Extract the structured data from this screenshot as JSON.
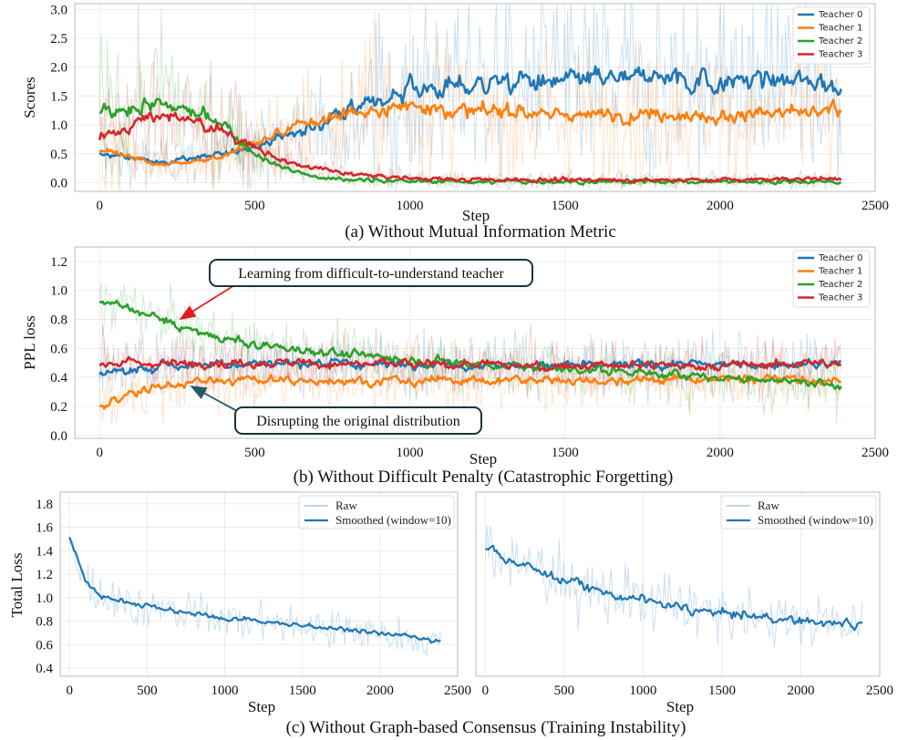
{
  "colors": {
    "teacher0": "#1f77b4",
    "teacher1": "#ff7f0e",
    "teacher2": "#2ca02c",
    "teacher3": "#d62728",
    "smooth": "#1f77b4",
    "raw": "#a9c9e6"
  },
  "chart_data": [
    {
      "id": "a",
      "type": "line",
      "caption": "(a) Without Mutual Information Metric",
      "xlabel": "Step",
      "ylabel": "Scores",
      "xlim": [
        -80,
        2500
      ],
      "ylim": [
        -0.15,
        3.1
      ],
      "xticks": [
        0,
        500,
        1000,
        1500,
        2000,
        2500
      ],
      "xtick_labels": [
        "0",
        "500",
        "1000",
        "1500",
        "2000",
        "2500"
      ],
      "yticks": [
        0.0,
        0.5,
        1.0,
        1.5,
        2.0,
        2.5,
        3.0
      ],
      "ytick_labels": [
        "0.0",
        "0.5",
        "1.0",
        "1.5",
        "2.0",
        "2.5",
        "3.0"
      ],
      "legend": "top-right",
      "series": [
        {
          "name": "Teacher 0",
          "x": [
            0,
            200,
            400,
            600,
            800,
            1000,
            1200,
            1400,
            1600,
            1800,
            2000,
            2200,
            2390
          ],
          "y": [
            0.5,
            0.35,
            0.5,
            0.8,
            1.2,
            1.6,
            1.7,
            1.75,
            1.8,
            1.8,
            1.75,
            1.8,
            1.65
          ]
        },
        {
          "name": "Teacher 1",
          "x": [
            0,
            200,
            400,
            600,
            800,
            1000,
            1200,
            1400,
            1600,
            1800,
            2000,
            2200,
            2390
          ],
          "y": [
            0.6,
            0.3,
            0.45,
            0.9,
            1.2,
            1.35,
            1.25,
            1.2,
            1.15,
            1.2,
            1.15,
            1.2,
            1.25
          ]
        },
        {
          "name": "Teacher 2",
          "x": [
            0,
            200,
            400,
            500,
            600,
            700,
            800,
            1000,
            1200,
            1600,
            2000,
            2390
          ],
          "y": [
            1.2,
            1.4,
            1.0,
            0.5,
            0.25,
            0.1,
            0.05,
            0.03,
            0.02,
            0.02,
            0.02,
            0.02
          ]
        },
        {
          "name": "Teacher 3",
          "x": [
            0,
            200,
            400,
            600,
            800,
            1000,
            1200,
            1600,
            2000,
            2390
          ],
          "y": [
            0.8,
            1.2,
            0.9,
            0.35,
            0.15,
            0.08,
            0.05,
            0.05,
            0.05,
            0.08
          ]
        }
      ]
    },
    {
      "id": "b",
      "type": "line",
      "caption": "(b) Without Difficult Penalty (Catastrophic Forgetting)",
      "xlabel": "Step",
      "ylabel": "PPL loss",
      "xlim": [
        -80,
        2500
      ],
      "ylim": [
        -0.02,
        1.3
      ],
      "xticks": [
        0,
        500,
        1000,
        1500,
        2000,
        2500
      ],
      "xtick_labels": [
        "0",
        "500",
        "1000",
        "1500",
        "2000",
        "2500"
      ],
      "yticks": [
        0.0,
        0.2,
        0.4,
        0.6,
        0.8,
        1.0,
        1.2
      ],
      "ytick_labels": [
        "0.0",
        "0.2",
        "0.4",
        "0.6",
        "0.8",
        "1.0",
        "1.2"
      ],
      "legend": "top-right",
      "series": [
        {
          "name": "Teacher 0",
          "x": [
            0,
            200,
            500,
            1000,
            1500,
            2000,
            2390
          ],
          "y": [
            0.42,
            0.48,
            0.5,
            0.49,
            0.48,
            0.49,
            0.5
          ]
        },
        {
          "name": "Teacher 1",
          "x": [
            0,
            100,
            200,
            300,
            500,
            1000,
            1500,
            2000,
            2390
          ],
          "y": [
            0.2,
            0.28,
            0.35,
            0.37,
            0.38,
            0.38,
            0.38,
            0.39,
            0.38
          ]
        },
        {
          "name": "Teacher 2",
          "x": [
            0,
            100,
            200,
            300,
            500,
            800,
            1000,
            1500,
            2000,
            2390
          ],
          "y": [
            0.92,
            0.88,
            0.8,
            0.72,
            0.62,
            0.56,
            0.52,
            0.46,
            0.4,
            0.35
          ]
        },
        {
          "name": "Teacher 3",
          "x": [
            0,
            200,
            500,
            1000,
            1500,
            2000,
            2390
          ],
          "y": [
            0.5,
            0.5,
            0.5,
            0.49,
            0.48,
            0.48,
            0.5
          ]
        }
      ],
      "annotations": [
        {
          "text": "Learning from difficult-to-understand teacher",
          "points_to": {
            "x": 230,
            "y": 0.82
          }
        },
        {
          "text": "Disrupting the original distribution",
          "points_to": {
            "x": 260,
            "y": 0.36
          }
        }
      ]
    },
    {
      "id": "c-left",
      "type": "line",
      "xlabel": "Step",
      "ylabel": "Total Loss",
      "xlim": [
        -60,
        2500
      ],
      "ylim": [
        0.33,
        1.9
      ],
      "xticks": [
        0,
        500,
        1000,
        1500,
        2000,
        2500
      ],
      "xtick_labels": [
        "0",
        "500",
        "1000",
        "1500",
        "2000",
        "2500"
      ],
      "yticks": [
        0.4,
        0.6,
        0.8,
        1.0,
        1.2,
        1.4,
        1.6,
        1.8
      ],
      "ytick_labels": [
        "0.4",
        "0.6",
        "0.8",
        "1.0",
        "1.2",
        "1.4",
        "1.6",
        "1.8"
      ],
      "legend": "top-right",
      "series": [
        {
          "name": "Raw",
          "x": [
            0,
            50,
            100,
            200,
            400,
            600,
            800,
            1000,
            1200,
            1500,
            1800,
            2000,
            2200,
            2390
          ],
          "y": [
            1.5,
            1.35,
            1.15,
            1.02,
            0.95,
            0.9,
            0.86,
            0.83,
            0.8,
            0.76,
            0.73,
            0.7,
            0.66,
            0.62
          ]
        },
        {
          "name": "Smoothed (window=10)",
          "x": [
            0,
            50,
            100,
            200,
            400,
            600,
            800,
            1000,
            1200,
            1500,
            1800,
            2000,
            2200,
            2390
          ],
          "y": [
            1.5,
            1.35,
            1.15,
            1.02,
            0.95,
            0.9,
            0.86,
            0.83,
            0.8,
            0.76,
            0.73,
            0.7,
            0.66,
            0.62
          ]
        }
      ]
    },
    {
      "id": "c-right",
      "type": "line",
      "xlabel": "Step",
      "ylabel": "",
      "xlim": [
        -60,
        2500
      ],
      "ylim": [
        0.33,
        1.9
      ],
      "xticks": [
        0,
        500,
        1000,
        1500,
        2000,
        2500
      ],
      "xtick_labels": [
        "0",
        "500",
        "1000",
        "1500",
        "2000",
        "2500"
      ],
      "yticks": [],
      "ytick_labels": [],
      "legend": "top-right",
      "series": [
        {
          "name": "Raw",
          "x": [
            0,
            100,
            300,
            500,
            800,
            1000,
            1300,
            1600,
            2000,
            2200,
            2390
          ],
          "y": [
            1.45,
            1.35,
            1.25,
            1.15,
            1.02,
            0.98,
            0.9,
            0.85,
            0.8,
            0.78,
            0.78
          ]
        },
        {
          "name": "Smoothed (window=10)",
          "x": [
            0,
            100,
            300,
            500,
            800,
            1000,
            1300,
            1600,
            2000,
            2200,
            2390
          ],
          "y": [
            1.45,
            1.35,
            1.25,
            1.15,
            1.02,
            0.98,
            0.9,
            0.85,
            0.8,
            0.78,
            0.78
          ]
        }
      ]
    }
  ],
  "caption_c": "(c) Without Graph-based Consensus (Training Instability)"
}
